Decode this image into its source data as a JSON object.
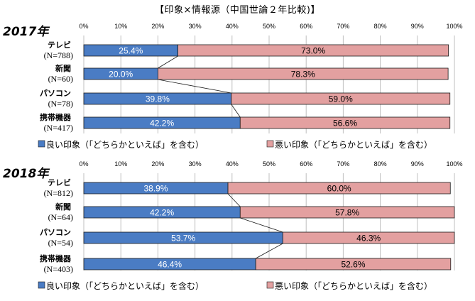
{
  "title": "【印象×情報源（中国世論２年比較)】",
  "colors": {
    "good": "#4a7cc4",
    "bad": "#e3a0a0",
    "grid": "#bfbfbf",
    "line": "#1a1a1a"
  },
  "chart_data": [
    {
      "type": "bar",
      "orientation": "horizontal-stacked-percent",
      "year_label": "2017年",
      "x_ticks": [
        "0%",
        "10%",
        "20%",
        "30%",
        "40%",
        "50%",
        "60%",
        "70%",
        "80%",
        "90%",
        "100%"
      ],
      "xlim": [
        0,
        100
      ],
      "categories": [
        "テレビ",
        "新聞",
        "パソコン",
        "携帯機器"
      ],
      "sample_sizes": [
        "(N=788)",
        "(N=60)",
        "(N=78)",
        "(N=417)"
      ],
      "series": [
        {
          "name": "良い印象（「どちらかといえば」を含む）",
          "values": [
            25.4,
            20.0,
            39.8,
            42.2
          ],
          "labels": [
            "25.4%",
            "20.0%",
            "39.8%",
            "42.2%"
          ]
        },
        {
          "name": "悪い印象（「どちらかといえば」を含む）",
          "values": [
            73.0,
            78.3,
            59.0,
            56.6
          ],
          "labels": [
            "73.0%",
            "78.3%",
            "59.0%",
            "56.6%"
          ]
        }
      ],
      "legend": [
        "良い印象（「どちらかといえば」を含む）",
        "悪い印象（「どちらかといえば」を含む）"
      ]
    },
    {
      "type": "bar",
      "orientation": "horizontal-stacked-percent",
      "year_label": "2018年",
      "x_ticks": [
        "0%",
        "10%",
        "20%",
        "30%",
        "40%",
        "50%",
        "60%",
        "70%",
        "80%",
        "90%",
        "100%"
      ],
      "xlim": [
        0,
        100
      ],
      "categories": [
        "テレビ",
        "新聞",
        "パソコン",
        "携帯機器"
      ],
      "sample_sizes": [
        "(N=812)",
        "(N=64)",
        "(N=54)",
        "(N=403)"
      ],
      "series": [
        {
          "name": "良い印象（「どちらかといえば」を含む）",
          "values": [
            38.9,
            42.2,
            53.7,
            46.4
          ],
          "labels": [
            "38.9%",
            "42.2%",
            "53.7%",
            "46.4%"
          ]
        },
        {
          "name": "悪い印象（「どちらかといえば」を含む）",
          "values": [
            60.0,
            57.8,
            46.3,
            52.6
          ],
          "labels": [
            "60.0%",
            "57.8%",
            "46.3%",
            "52.6%"
          ]
        }
      ],
      "legend": [
        "良い印象（「どちらかといえば」を含む）",
        "悪い印象（「どちらかといえば」を含む）"
      ]
    }
  ]
}
